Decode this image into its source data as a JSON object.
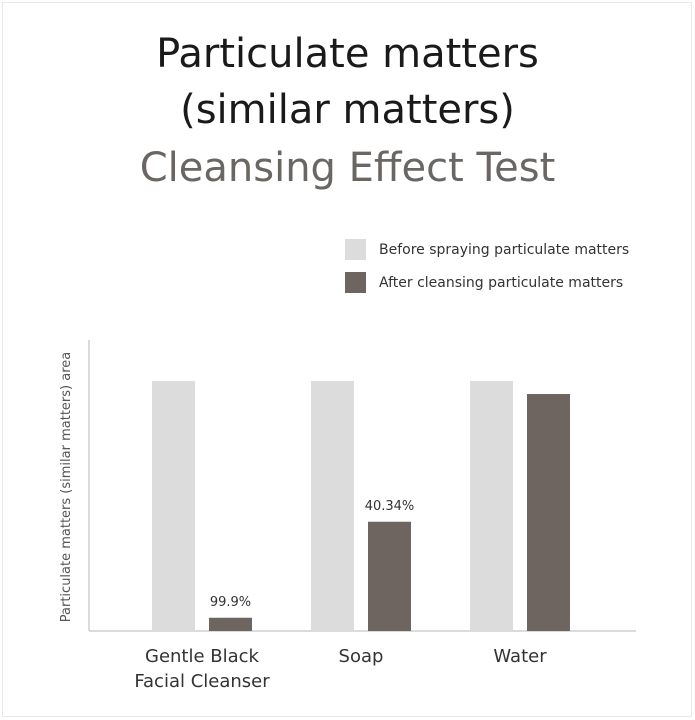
{
  "header": {
    "title_line1": "Particulate matters",
    "title_line2": "(similar matters)",
    "title_line3": "Cleansing Effect Test"
  },
  "colors": {
    "before": "#dcdcdc",
    "after": "#6e6560",
    "axis": "#cfcfcf",
    "text": "#333333"
  },
  "chart_data": {
    "type": "bar",
    "title": "",
    "xlabel": "",
    "ylabel": "Particulate matters (similar matters) area",
    "ylim": [
      0,
      100
    ],
    "legend_position": "top-right",
    "grid": false,
    "categories": [
      [
        "Gentle Black",
        "Facial Cleanser"
      ],
      [
        "Soap"
      ],
      [
        "Water"
      ]
    ],
    "series": [
      {
        "name": "Before spraying particulate matters",
        "values": [
          100,
          100,
          100
        ]
      },
      {
        "name": "After cleansing particulate matters",
        "values": [
          5.3,
          43.7,
          94.8
        ]
      }
    ],
    "data_labels": [
      "99.9%",
      "40.34%",
      ""
    ]
  }
}
